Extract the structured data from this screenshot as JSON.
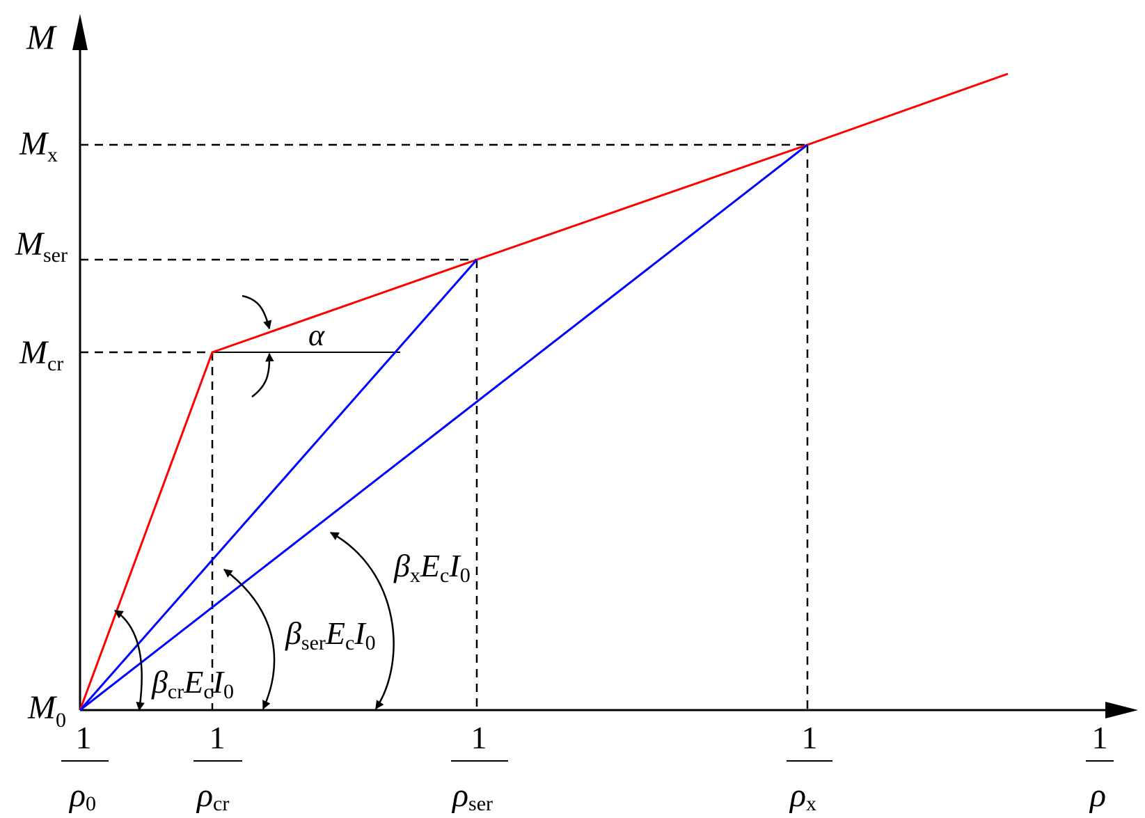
{
  "axes": {
    "y_label": "M",
    "x_label_num": "1",
    "x_label_den": "ρ"
  },
  "y_ticks": [
    {
      "main": "M",
      "sub": "x"
    },
    {
      "main": "M",
      "sub": "ser"
    },
    {
      "main": "M",
      "sub": "cr"
    },
    {
      "main": "M",
      "sub": "0"
    }
  ],
  "x_ticks": [
    {
      "num": "1",
      "den_main": "ρ",
      "den_sub": "0"
    },
    {
      "num": "1",
      "den_main": "ρ",
      "den_sub": "cr"
    },
    {
      "num": "1",
      "den_main": "ρ",
      "den_sub": "ser"
    },
    {
      "num": "1",
      "den_main": "ρ",
      "den_sub": "x"
    }
  ],
  "annotations": {
    "alpha": "α",
    "beta_cr": {
      "b": "β",
      "b_sub": "cr",
      "e": "E",
      "e_sub": "c",
      "i": "I",
      "i_sub": "0"
    },
    "beta_ser": {
      "b": "β",
      "b_sub": "ser",
      "e": "E",
      "e_sub": "c",
      "i": "I",
      "i_sub": "0"
    },
    "beta_x": {
      "b": "β",
      "b_sub": "x",
      "e": "E",
      "e_sub": "c",
      "i": "I",
      "i_sub": "0"
    }
  },
  "colors": {
    "curve": "#ff0000",
    "secant": "#0000ff",
    "axis": "#000000"
  }
}
